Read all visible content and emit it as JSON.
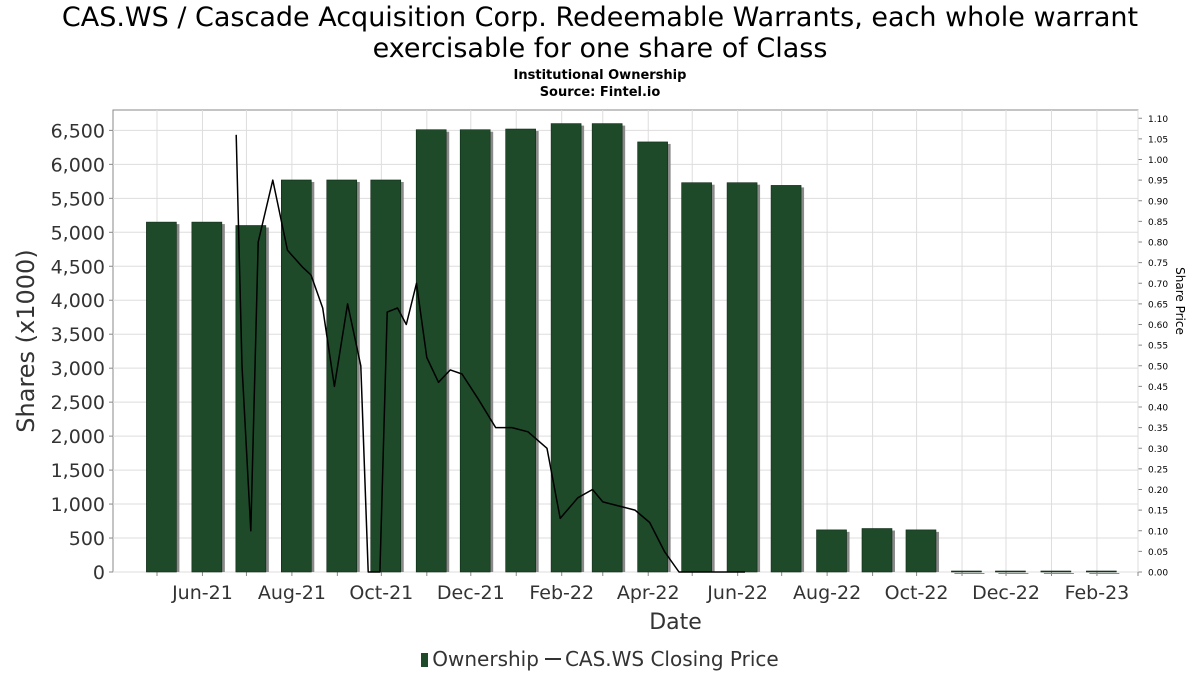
{
  "title_line1": "CAS.WS / Cascade Acquisition Corp. Redeemable Warrants, each whole warrant",
  "title_line2": "exercisable for one share of Class",
  "subtitle": "Institutional Ownership",
  "source": "Source: Fintel.io",
  "legend": {
    "ownership": "Ownership",
    "price": "CAS.WS Closing Price"
  },
  "colors": {
    "bar": "#1e4a2a",
    "bar_shadow": "#8a8a8a",
    "line": "#000000",
    "grid": "#dddddd"
  },
  "chart_data": {
    "type": "bar",
    "xlabel": "Date",
    "ylabel": "Shares (x1000)",
    "y2label": "Share Price",
    "ylim": [
      0,
      6800
    ],
    "y2lim": [
      0,
      1.12
    ],
    "grid": true,
    "legend_position": "bottom",
    "x_tick_labels": [
      "Jun-21",
      "Aug-21",
      "Oct-21",
      "Dec-21",
      "Feb-22",
      "Apr-22",
      "Jun-22",
      "Aug-22",
      "Oct-22",
      "Dec-22",
      "Feb-23"
    ],
    "y_ticks": [
      "0",
      "500",
      "1,000",
      "1,500",
      "2,000",
      "2,500",
      "3,000",
      "3,500",
      "4,000",
      "4,500",
      "5,000",
      "5,500",
      "6,000",
      "6,500"
    ],
    "y2_ticks": [
      "0.00",
      "0.05",
      "0.10",
      "0.15",
      "0.20",
      "0.25",
      "0.30",
      "0.35",
      "0.40",
      "0.45",
      "0.50",
      "0.55",
      "0.60",
      "0.65",
      "0.70",
      "0.75",
      "0.80",
      "0.85",
      "0.90",
      "0.95",
      "1.00",
      "1.05",
      "1.10"
    ],
    "series": [
      {
        "name": "Ownership",
        "type": "bar",
        "x": [
          "2021-05-18",
          "2021-06-18",
          "2021-07-18",
          "2021-08-18",
          "2021-09-18",
          "2021-10-18",
          "2021-11-18",
          "2021-12-18",
          "2022-01-18",
          "2022-02-18",
          "2022-03-18",
          "2022-04-18",
          "2022-05-18",
          "2022-06-18",
          "2022-07-18",
          "2022-08-18",
          "2022-09-18",
          "2022-10-18",
          "2022-11-18",
          "2022-12-18",
          "2023-01-18",
          "2023-02-18"
        ],
        "values": [
          5150,
          5150,
          5100,
          5770,
          5770,
          5770,
          6510,
          6510,
          6520,
          6600,
          6600,
          6330,
          5730,
          5730,
          5690,
          620,
          640,
          620,
          0,
          0,
          0,
          0
        ]
      },
      {
        "name": "CAS.WS Closing Price",
        "type": "line",
        "x": [
          "2021-07-08",
          "2021-07-12",
          "2021-07-18",
          "2021-07-23",
          "2021-08-02",
          "2021-08-12",
          "2021-08-22",
          "2021-08-28",
          "2021-09-05",
          "2021-09-13",
          "2021-09-22",
          "2021-10-01",
          "2021-10-06",
          "2021-10-10",
          "2021-10-14",
          "2021-10-19",
          "2021-10-26",
          "2021-11-01",
          "2021-11-08",
          "2021-11-15",
          "2021-11-23",
          "2021-12-01",
          "2021-12-09",
          "2021-12-20",
          "2022-01-01",
          "2022-01-12",
          "2022-01-23",
          "2022-02-05",
          "2022-02-14",
          "2022-02-26",
          "2022-03-08",
          "2022-03-15",
          "2022-03-26",
          "2022-04-06",
          "2022-04-16",
          "2022-04-26",
          "2022-05-06",
          "2022-05-15",
          "2022-05-22",
          "2022-05-28",
          "2022-06-06",
          "2022-06-20"
        ],
        "values": [
          1.06,
          0.5,
          0.1,
          0.8,
          0.95,
          0.78,
          0.74,
          0.72,
          0.64,
          0.45,
          0.65,
          0.5,
          0.0,
          0.0,
          0.0,
          0.63,
          0.64,
          0.6,
          0.7,
          0.52,
          0.46,
          0.49,
          0.48,
          0.42,
          0.35,
          0.35,
          0.34,
          0.3,
          0.13,
          0.18,
          0.2,
          0.17,
          0.16,
          0.15,
          0.12,
          0.05,
          0.0,
          0.0,
          0.0,
          0.0,
          0.0,
          0.0
        ]
      }
    ]
  }
}
